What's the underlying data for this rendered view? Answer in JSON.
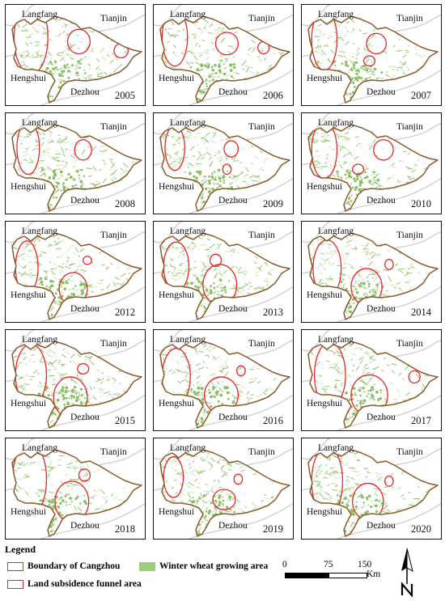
{
  "place_labels": {
    "north": "Langfang",
    "northeast": "Tianjin",
    "west": "Hengshui",
    "south": "Dezhou"
  },
  "panels": [
    {
      "year": "2005",
      "funnel": [
        [
          0.18,
          0.32,
          0.12,
          0.36
        ],
        [
          0.52,
          0.36,
          0.08,
          0.12
        ],
        [
          0.82,
          0.45,
          0.05,
          0.07
        ]
      ]
    },
    {
      "year": "2006",
      "funnel": [
        [
          0.15,
          0.32,
          0.09,
          0.28
        ],
        [
          0.52,
          0.38,
          0.08,
          0.11
        ],
        [
          0.78,
          0.42,
          0.04,
          0.06
        ]
      ]
    },
    {
      "year": "2007",
      "funnel": [
        [
          0.16,
          0.34,
          0.09,
          0.3
        ],
        [
          0.53,
          0.38,
          0.07,
          0.1
        ],
        [
          0.48,
          0.55,
          0.04,
          0.05
        ]
      ]
    },
    {
      "year": "2008",
      "funnel": [
        [
          0.16,
          0.34,
          0.08,
          0.26
        ],
        [
          0.55,
          0.36,
          0.06,
          0.1
        ],
        [
          0.15,
          0.85,
          0.04,
          0.06
        ]
      ]
    },
    {
      "year": "2009",
      "funnel": [
        [
          0.15,
          0.34,
          0.07,
          0.22
        ],
        [
          0.55,
          0.35,
          0.05,
          0.08
        ],
        [
          0.52,
          0.55,
          0.03,
          0.05
        ]
      ]
    },
    {
      "year": "2010",
      "funnel": [
        [
          0.16,
          0.36,
          0.09,
          0.28
        ],
        [
          0.58,
          0.36,
          0.07,
          0.1
        ],
        [
          0.4,
          0.55,
          0.04,
          0.05
        ]
      ]
    },
    {
      "year": "2012",
      "funnel": [
        [
          0.15,
          0.45,
          0.08,
          0.26
        ],
        [
          0.48,
          0.66,
          0.1,
          0.16
        ],
        [
          0.58,
          0.38,
          0.03,
          0.04
        ]
      ]
    },
    {
      "year": "2013",
      "funnel": [
        [
          0.16,
          0.44,
          0.09,
          0.24
        ],
        [
          0.47,
          0.62,
          0.12,
          0.2
        ],
        [
          0.44,
          0.38,
          0.04,
          0.06
        ]
      ]
    },
    {
      "year": "2014",
      "funnel": [
        [
          0.18,
          0.46,
          0.1,
          0.28
        ],
        [
          0.46,
          0.64,
          0.11,
          0.18
        ],
        [
          0.62,
          0.42,
          0.03,
          0.05
        ]
      ]
    },
    {
      "year": "2015",
      "funnel": [
        [
          0.18,
          0.44,
          0.11,
          0.3
        ],
        [
          0.46,
          0.66,
          0.12,
          0.2
        ],
        [
          0.55,
          0.38,
          0.04,
          0.05
        ]
      ]
    },
    {
      "year": "2016",
      "funnel": [
        [
          0.16,
          0.46,
          0.1,
          0.28
        ],
        [
          0.48,
          0.64,
          0.12,
          0.18
        ],
        [
          0.62,
          0.4,
          0.03,
          0.05
        ]
      ]
    },
    {
      "year": "2017",
      "funnel": [
        [
          0.2,
          0.44,
          0.11,
          0.32
        ],
        [
          0.48,
          0.64,
          0.13,
          0.2
        ],
        [
          0.8,
          0.46,
          0.04,
          0.06
        ]
      ]
    },
    {
      "year": "2018",
      "funnel": [
        [
          0.17,
          0.4,
          0.12,
          0.36
        ],
        [
          0.47,
          0.62,
          0.12,
          0.2
        ],
        [
          0.56,
          0.36,
          0.04,
          0.06
        ]
      ]
    },
    {
      "year": "2019",
      "funnel": [
        [
          0.14,
          0.38,
          0.07,
          0.2
        ],
        [
          0.5,
          0.6,
          0.08,
          0.1
        ],
        [
          0.6,
          0.4,
          0.03,
          0.05
        ]
      ]
    },
    {
      "year": "2020",
      "funnel": [
        [
          0.18,
          0.42,
          0.11,
          0.34
        ],
        [
          0.47,
          0.62,
          0.11,
          0.18
        ],
        [
          0.62,
          0.42,
          0.03,
          0.05
        ]
      ]
    }
  ],
  "legend": {
    "title": "Legend",
    "boundary": "Boundary of Cangzhou",
    "funnel": "Land subsidence funnel area",
    "wheat": "Winter wheat growing area"
  },
  "scale_bar": {
    "ticks": [
      "0",
      "75",
      "150"
    ],
    "unit": "Km"
  },
  "colors": {
    "boundary": "#8b5a2b",
    "funnel": "#e8262a",
    "wheat": "#8cbf65",
    "wheat_light": "#c8e2b0",
    "river": "#cfcfcf",
    "frame": "#111111"
  },
  "north_arrow": "north-arrow-icon"
}
